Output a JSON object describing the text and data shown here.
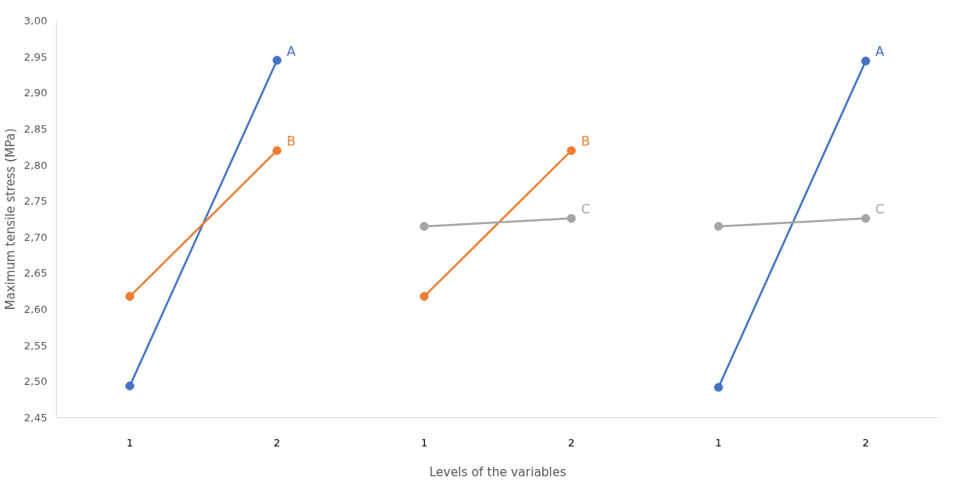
{
  "chart_data": {
    "type": "line",
    "xlabel": "Levels of the variables",
    "ylabel": "Maximum tensile stress (MPa)",
    "categories": [
      "1",
      "2",
      "1",
      "2",
      "1",
      "2"
    ],
    "ylim": [
      2.45,
      3.0
    ],
    "yticks": [
      {
        "value": 2.45,
        "label": "2,45"
      },
      {
        "value": 2.5,
        "label": "2,50"
      },
      {
        "value": 2.55,
        "label": "2,55"
      },
      {
        "value": 2.6,
        "label": "2,60"
      },
      {
        "value": 2.65,
        "label": "2,65"
      },
      {
        "value": 2.7,
        "label": "2,70"
      },
      {
        "value": 2.75,
        "label": "2,75"
      },
      {
        "value": 2.8,
        "label": "2,80"
      },
      {
        "value": 2.85,
        "label": "2,85"
      },
      {
        "value": 2.9,
        "label": "2,90"
      },
      {
        "value": 2.95,
        "label": "2,95"
      },
      {
        "value": 3.0,
        "label": "3,00"
      }
    ],
    "grid": false,
    "legend": false,
    "marker": "circle",
    "line_style": "solid",
    "series": [
      {
        "name": "A",
        "color": "#4472c4",
        "values": [
          2.494,
          2.945,
          null,
          null,
          null,
          null
        ]
      },
      {
        "name": "B",
        "color": "#ed7d31",
        "values": [
          2.618,
          2.82,
          null,
          null,
          null,
          null
        ]
      },
      {
        "name": "B",
        "color": "#ed7d31",
        "values": [
          null,
          null,
          2.618,
          2.82,
          null,
          null
        ]
      },
      {
        "name": "C",
        "color": "#a5a5a5",
        "values": [
          null,
          null,
          2.715,
          2.726,
          null,
          null
        ]
      },
      {
        "name": "A",
        "color": "#4472c4",
        "values": [
          null,
          null,
          null,
          null,
          2.492,
          2.944
        ]
      },
      {
        "name": "C",
        "color": "#a5a5a5",
        "values": [
          null,
          null,
          null,
          null,
          2.715,
          2.726
        ]
      }
    ]
  }
}
